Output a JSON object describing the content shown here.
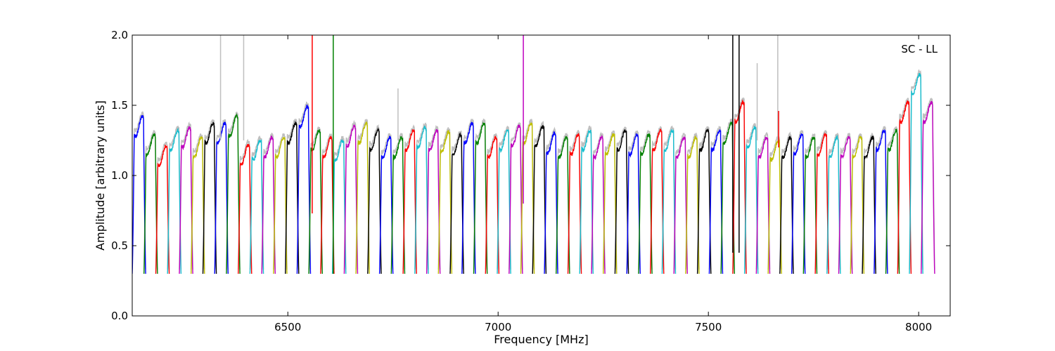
{
  "chart_data": {
    "type": "line",
    "title": "",
    "annotation": "SC - LL",
    "xlabel": "Frequency [MHz]",
    "ylabel": "Amplitude [arbitrary units]",
    "xlim": [
      6130,
      8075
    ],
    "ylim": [
      0.0,
      2.0
    ],
    "x_ticks": [
      6500,
      7000,
      7500,
      8000
    ],
    "x_tick_labels": [
      "6500",
      "7000",
      "7500",
      "8000"
    ],
    "y_ticks": [
      0.0,
      0.5,
      1.0,
      1.5,
      2.0
    ],
    "y_tick_labels": [
      "0.0",
      "0.5",
      "1.0",
      "1.5",
      "2.0"
    ],
    "grid": false,
    "legend": "none",
    "window_start_mhz": 6130,
    "window_width_mhz": 32,
    "window_rolloff_mhz": 5,
    "floor_level": 0.3,
    "color_cycle": [
      "#0000ff",
      "#008000",
      "#ff0000",
      "#17becf",
      "#bf00bf",
      "#bfbf00",
      "#000000"
    ],
    "background_trace_color": "#bfbfbf",
    "window_levels": [
      1.35,
      1.22,
      1.14,
      1.25,
      1.27,
      1.2,
      1.3,
      1.3,
      1.35,
      1.15,
      1.18,
      1.2,
      1.2,
      1.3,
      1.42,
      1.25,
      1.2,
      1.18,
      1.28,
      1.3,
      1.25,
      1.2,
      1.2,
      1.25,
      1.27,
      1.25,
      1.24,
      1.22,
      1.3,
      1.3,
      1.2,
      1.25,
      1.28,
      1.3,
      1.28,
      1.23,
      1.2,
      1.22,
      1.25,
      1.2,
      1.22,
      1.25,
      1.22,
      1.22,
      1.25,
      1.25,
      1.2,
      1.2,
      1.25,
      1.25,
      1.3,
      1.45,
      1.27,
      1.2,
      1.18,
      1.2,
      1.22,
      1.2,
      1.22,
      1.2,
      1.2,
      1.2,
      1.2,
      1.25,
      1.25,
      1.45,
      1.65,
      1.45
    ],
    "spikes": [
      {
        "x": 6340,
        "y_top": 2.0,
        "color": "#bfbfbf"
      },
      {
        "x": 6395,
        "y_top": 2.0,
        "color": "#bfbfbf"
      },
      {
        "x": 6558,
        "y_top": 2.0,
        "y_bottom": 0.73,
        "color": "#ff0000"
      },
      {
        "x": 6608,
        "y_top": 2.0,
        "y_bottom": 0.3,
        "color": "#008000"
      },
      {
        "x": 6762,
        "y_top": 1.62,
        "color": "#bfbfbf"
      },
      {
        "x": 7060,
        "y_top": 2.0,
        "y_bottom": 0.8,
        "color": "#bf00bf"
      },
      {
        "x": 7558,
        "y_top": 2.0,
        "y_bottom": 0.45,
        "color": "#000000"
      },
      {
        "x": 7573,
        "y_top": 2.0,
        "y_bottom": 0.45,
        "color": "#000000"
      },
      {
        "x": 7616,
        "y_top": 1.8,
        "color": "#bfbfbf"
      },
      {
        "x": 7665,
        "y_top": 2.0,
        "color": "#bfbfbf"
      },
      {
        "x": 7667,
        "y_top": 1.46,
        "y_bottom": 1.2,
        "color": "#ff0000"
      }
    ]
  }
}
